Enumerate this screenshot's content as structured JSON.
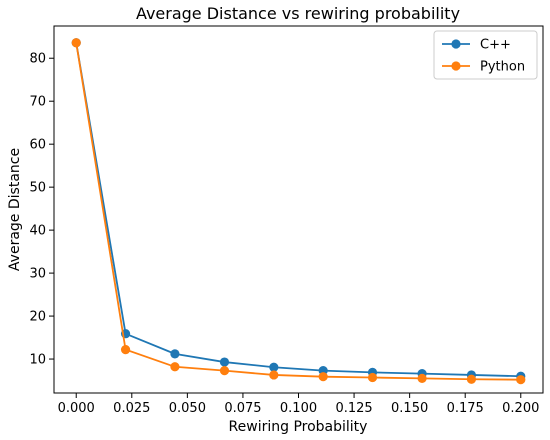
{
  "chart_data": {
    "type": "line",
    "title": "Average Distance vs rewiring probability",
    "xlabel": "Rewiring Probability",
    "ylabel": "Average Distance",
    "xlim": [
      -0.01,
      0.21
    ],
    "ylim": [
      2.1,
      87.5
    ],
    "xticks": [
      0.0,
      0.025,
      0.05,
      0.075,
      0.1,
      0.125,
      0.15,
      0.175,
      0.2
    ],
    "xtick_labels": [
      "0.000",
      "0.025",
      "0.050",
      "0.075",
      "0.100",
      "0.125",
      "0.150",
      "0.175",
      "0.200"
    ],
    "yticks": [
      10,
      20,
      30,
      40,
      50,
      60,
      70,
      80
    ],
    "ytick_labels": [
      "10",
      "20",
      "30",
      "40",
      "50",
      "60",
      "70",
      "80"
    ],
    "grid": false,
    "legend_position": "top-right",
    "x": [
      0.0,
      0.0222,
      0.0444,
      0.0667,
      0.0889,
      0.1111,
      0.1333,
      0.1556,
      0.1778,
      0.2
    ],
    "series": [
      {
        "name": "C++",
        "color": "#1f77b4",
        "values": [
          83.6,
          15.9,
          11.2,
          9.3,
          8.1,
          7.3,
          6.9,
          6.6,
          6.3,
          6.0
        ]
      },
      {
        "name": "Python",
        "color": "#ff7f0e",
        "values": [
          83.6,
          12.2,
          8.2,
          7.3,
          6.3,
          5.9,
          5.7,
          5.5,
          5.3,
          5.2
        ]
      }
    ]
  }
}
